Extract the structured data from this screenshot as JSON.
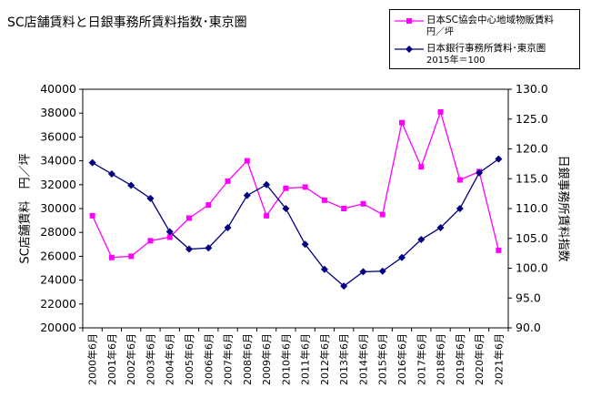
{
  "chart_data": {
    "type": "line",
    "title": "SC店舗賃料と日銀事務所賃料指数･東京圏",
    "categories": [
      "2000年6月",
      "2001年6月",
      "2002年6月",
      "2003年6月",
      "2004年6月",
      "2005年6月",
      "2006年6月",
      "2007年6月",
      "2008年6月",
      "2009年6月",
      "2010年6月",
      "2011年6月",
      "2012年6月",
      "2013年6月",
      "2014年6月",
      "2015年6月",
      "2016年6月",
      "2017年6月",
      "2018年6月",
      "2019年6月",
      "2020年6月",
      "2021年6月"
    ],
    "ylabel": "SC店舗賃料　円／坪",
    "y2label": "日銀事務所賃料指数",
    "ylim": [
      20000,
      40000
    ],
    "y2lim": [
      90.0,
      130.0
    ],
    "yticks": [
      "20000",
      "22000",
      "24000",
      "26000",
      "28000",
      "30000",
      "32000",
      "34000",
      "36000",
      "38000",
      "40000"
    ],
    "y2ticks": [
      "90.0",
      "95.0",
      "100.0",
      "105.0",
      "110.0",
      "115.0",
      "120.0",
      "125.0",
      "130.0"
    ],
    "grid": false,
    "legend_position": "top-right",
    "series": [
      {
        "name": "日本SC協会中心地域物販賃料円／坪",
        "legend_lines": [
          "日本SC協会中心地域物販賃料",
          "円／坪"
        ],
        "axis": "left",
        "color": "#ff00ff",
        "marker": "square",
        "values": [
          29400,
          25900,
          26000,
          27300,
          27600,
          29200,
          30300,
          32300,
          34000,
          29400,
          31700,
          31800,
          30700,
          30000,
          30400,
          29500,
          37200,
          33500,
          38100,
          32400,
          33100,
          26500
        ]
      },
      {
        "name": "日本銀行事務所賃料･東京圏",
        "legend_lines": [
          "日本銀行事務所賃料･東京圏",
          "2015年＝100"
        ],
        "axis": "right",
        "color": "#000080",
        "marker": "diamond",
        "values": [
          117.7,
          115.8,
          113.9,
          111.7,
          106.1,
          103.2,
          103.4,
          106.8,
          112.2,
          114.0,
          110.0,
          104.0,
          99.8,
          97.0,
          99.4,
          99.5,
          101.8,
          104.8,
          106.8,
          110.0,
          116.0,
          118.3
        ]
      }
    ]
  }
}
